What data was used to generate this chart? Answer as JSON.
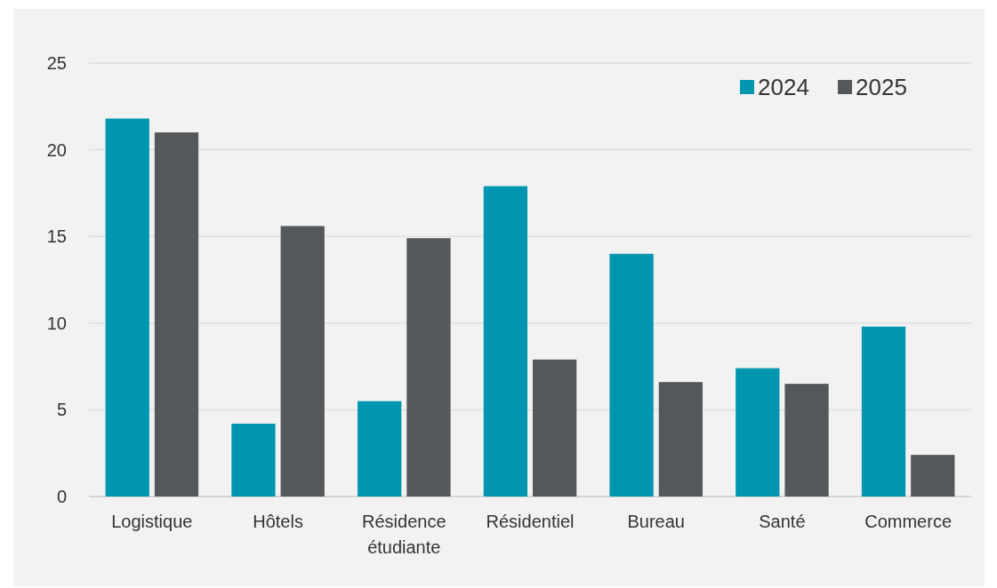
{
  "chart_data": {
    "type": "bar",
    "categories": [
      "Logistique",
      "Hôtels",
      "Résidence étudiante",
      "Résidentiel",
      "Bureau",
      "Santé",
      "Commerce"
    ],
    "series": [
      {
        "name": "2024",
        "color": "#0096b0",
        "values": [
          21.8,
          4.2,
          5.5,
          17.9,
          14.0,
          7.4,
          9.8
        ]
      },
      {
        "name": "2025",
        "color": "#54585a",
        "values": [
          21.0,
          15.6,
          14.9,
          7.9,
          6.6,
          6.5,
          2.4
        ]
      }
    ],
    "ylim": [
      0,
      25
    ],
    "yticks": [
      0,
      5,
      10,
      15,
      20,
      25
    ],
    "grid": "y",
    "legend": "top right"
  }
}
